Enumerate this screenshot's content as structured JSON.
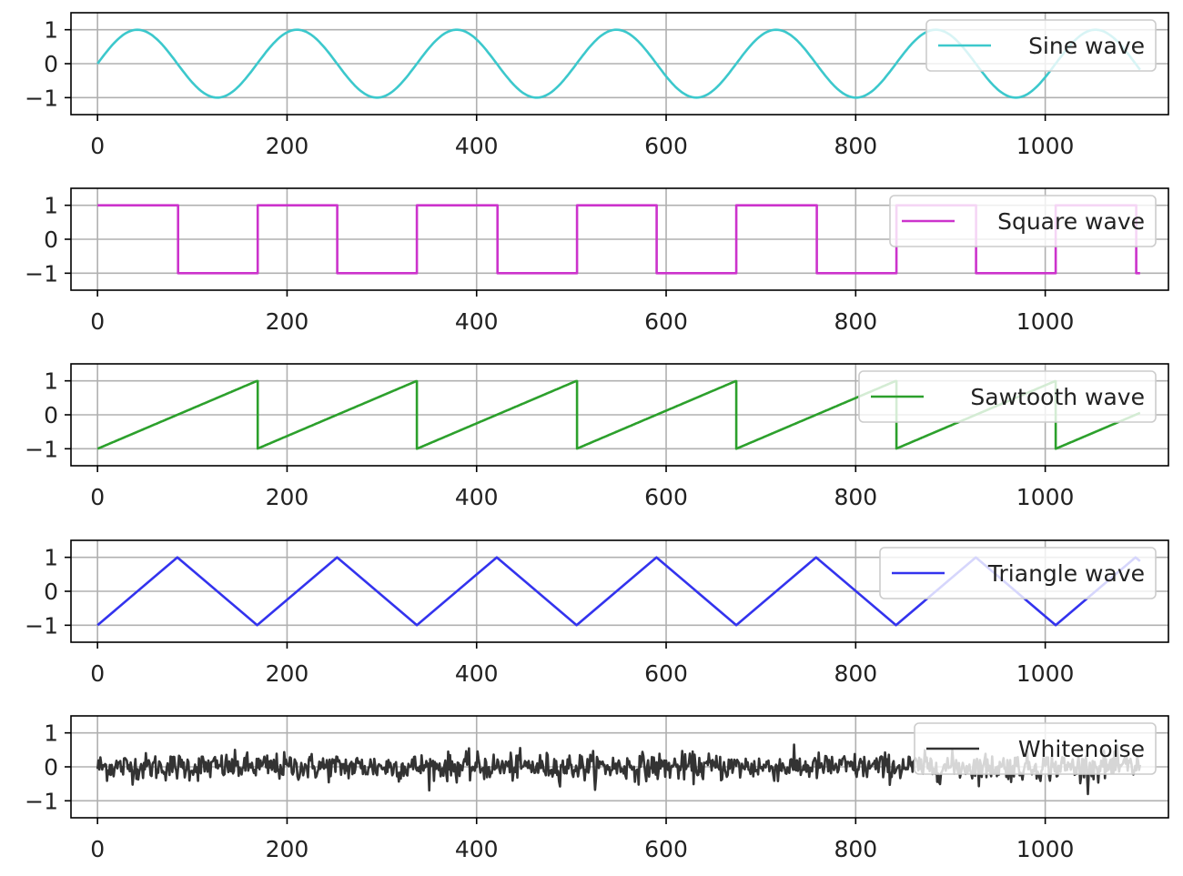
{
  "chart_data": [
    {
      "type": "line",
      "title": "",
      "xlabel": "",
      "ylabel": "",
      "xlim": [
        -28,
        1130
      ],
      "ylim": [
        -1.5,
        1.5
      ],
      "xticks": [
        0,
        200,
        400,
        600,
        800,
        1000
      ],
      "yticks": [
        -1,
        0,
        1
      ],
      "grid": true,
      "legend_position": "top-right",
      "series": [
        {
          "name": "Sine wave",
          "color": "#3cc8cc",
          "shape": "sine",
          "period": 168.5,
          "amplitude": 1,
          "x_start": 0,
          "x_end": 1100
        }
      ]
    },
    {
      "type": "line",
      "title": "",
      "xlabel": "",
      "ylabel": "",
      "xlim": [
        -28,
        1130
      ],
      "ylim": [
        -1.5,
        1.5
      ],
      "xticks": [
        0,
        200,
        400,
        600,
        800,
        1000
      ],
      "yticks": [
        -1,
        0,
        1
      ],
      "grid": true,
      "legend_position": "top-right",
      "series": [
        {
          "name": "Square wave",
          "color": "#cc33cc",
          "shape": "square",
          "period": 168.5,
          "amplitude": 1,
          "x_start": 0,
          "x_end": 1100
        }
      ]
    },
    {
      "type": "line",
      "title": "",
      "xlabel": "",
      "ylabel": "",
      "xlim": [
        -28,
        1130
      ],
      "ylim": [
        -1.5,
        1.5
      ],
      "xticks": [
        0,
        200,
        400,
        600,
        800,
        1000
      ],
      "yticks": [
        -1,
        0,
        1
      ],
      "grid": true,
      "legend_position": "top-right",
      "series": [
        {
          "name": "Sawtooth wave",
          "color": "#2ca02c",
          "shape": "sawtooth",
          "period": 168.5,
          "amplitude": 1,
          "x_start": 0,
          "x_end": 1100
        }
      ]
    },
    {
      "type": "line",
      "title": "",
      "xlabel": "",
      "ylabel": "",
      "xlim": [
        -28,
        1130
      ],
      "ylim": [
        -1.5,
        1.5
      ],
      "xticks": [
        0,
        200,
        400,
        600,
        800,
        1000
      ],
      "yticks": [
        -1,
        0,
        1
      ],
      "grid": true,
      "legend_position": "top-right",
      "series": [
        {
          "name": "Triangle wave",
          "color": "#3333ee",
          "shape": "triangle",
          "period": 168.5,
          "amplitude": 1,
          "x_start": 0,
          "x_end": 1100
        }
      ]
    },
    {
      "type": "line",
      "title": "",
      "xlabel": "",
      "ylabel": "",
      "xlim": [
        -28,
        1130
      ],
      "ylim": [
        -1.5,
        1.5
      ],
      "xticks": [
        0,
        200,
        400,
        600,
        800,
        1000
      ],
      "yticks": [
        -1,
        0,
        1
      ],
      "grid": true,
      "legend_position": "top-right",
      "series": [
        {
          "name": "Whitenoise",
          "color": "#333333",
          "shape": "noise",
          "std": 0.2,
          "x_start": 0,
          "x_end": 1100
        }
      ]
    }
  ]
}
